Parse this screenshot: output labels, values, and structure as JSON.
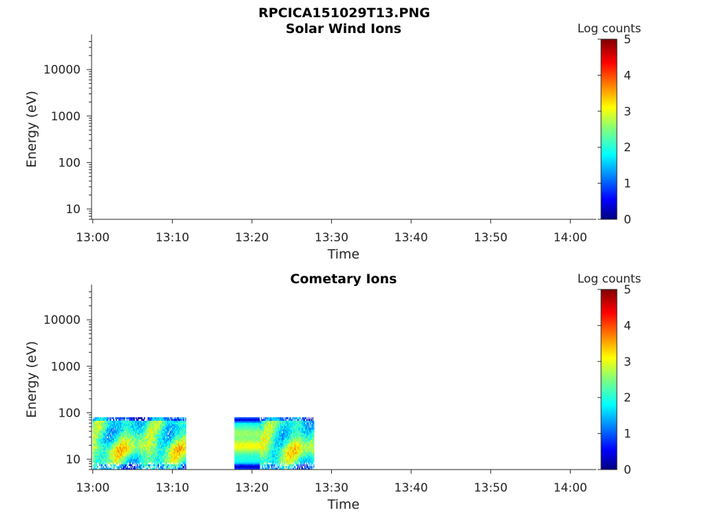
{
  "figure_title": "RPCICA151029T13.PNG",
  "chart_data": [
    {
      "type": "heatmap",
      "title": "Solar Wind Ions",
      "xlabel": "Time",
      "ylabel": "Energy (eV)",
      "y_scale": "log",
      "ylim": [
        6,
        45000
      ],
      "x_tick_labels": [
        "13:00",
        "13:10",
        "13:20",
        "13:30",
        "13:40",
        "13:50",
        "14:00"
      ],
      "y_tick_values": [
        10,
        100,
        1000,
        10000
      ],
      "y_tick_labels": [
        "10",
        "100",
        "1000",
        "10000"
      ],
      "colorbar": {
        "label": "Log counts",
        "min": 0,
        "max": 5,
        "tick_labels": [
          "0",
          "1",
          "2",
          "3",
          "4",
          "5"
        ],
        "colormap": "jet"
      },
      "blocks": []
    },
    {
      "type": "heatmap",
      "title": "Cometary Ions",
      "xlabel": "Time",
      "ylabel": "Energy (eV)",
      "y_scale": "log",
      "ylim": [
        6,
        45000
      ],
      "x_tick_labels": [
        "13:00",
        "13:10",
        "13:20",
        "13:30",
        "13:40",
        "13:50",
        "14:00"
      ],
      "y_tick_values": [
        10,
        100,
        1000,
        10000
      ],
      "y_tick_labels": [
        "10",
        "100",
        "1000",
        "10000"
      ],
      "colorbar": {
        "label": "Log counts",
        "min": 0,
        "max": 5,
        "tick_labels": [
          "0",
          "1",
          "2",
          "3",
          "4",
          "5"
        ],
        "colormap": "jet"
      },
      "blocks": [
        {
          "start_min": 0,
          "end_min": 11.7,
          "emin": 6,
          "emax": 80,
          "pattern": "variable"
        },
        {
          "start_min": 17.8,
          "end_min": 21.0,
          "emin": 6,
          "emax": 80,
          "pattern": "banded"
        },
        {
          "start_min": 21.0,
          "end_min": 27.8,
          "emin": 6,
          "emax": 80,
          "pattern": "variable"
        }
      ]
    }
  ]
}
